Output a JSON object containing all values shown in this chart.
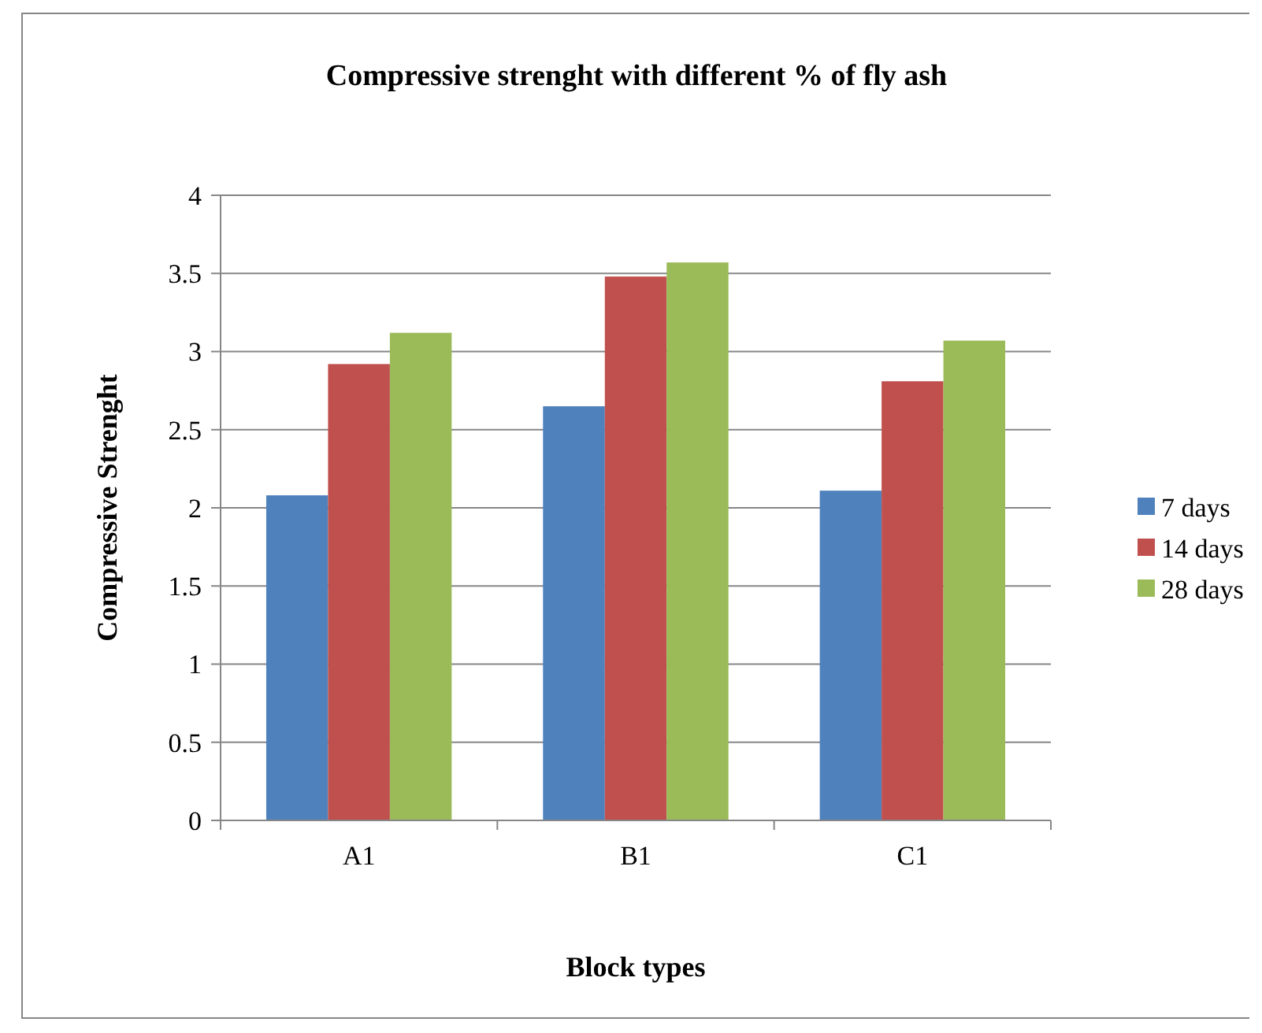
{
  "chart_data": {
    "type": "bar",
    "title": "Compressive strenght with different % of fly ash",
    "xlabel": "Block types",
    "ylabel": "Compressive Strenght",
    "categories": [
      "A1",
      "B1",
      "C1"
    ],
    "series": [
      {
        "name": "7 days",
        "color": "#4f81bd",
        "values": [
          2.08,
          2.65,
          2.11
        ]
      },
      {
        "name": "14 days",
        "color": "#c0504d",
        "values": [
          2.92,
          3.48,
          2.81
        ]
      },
      {
        "name": "28 days",
        "color": "#9bbb59",
        "values": [
          3.12,
          3.57,
          3.07
        ]
      }
    ],
    "ylim": [
      0,
      4
    ],
    "yticks": [
      0,
      {
        "value": 0.5,
        "label": "0.5"
      },
      1,
      {
        "value": 1.5,
        "label": "1.5"
      },
      2,
      {
        "value": 2.5,
        "label": "2.5"
      },
      3,
      {
        "value": 3.5,
        "label": "3.5"
      },
      4
    ],
    "grid": "y",
    "legend": "right"
  }
}
